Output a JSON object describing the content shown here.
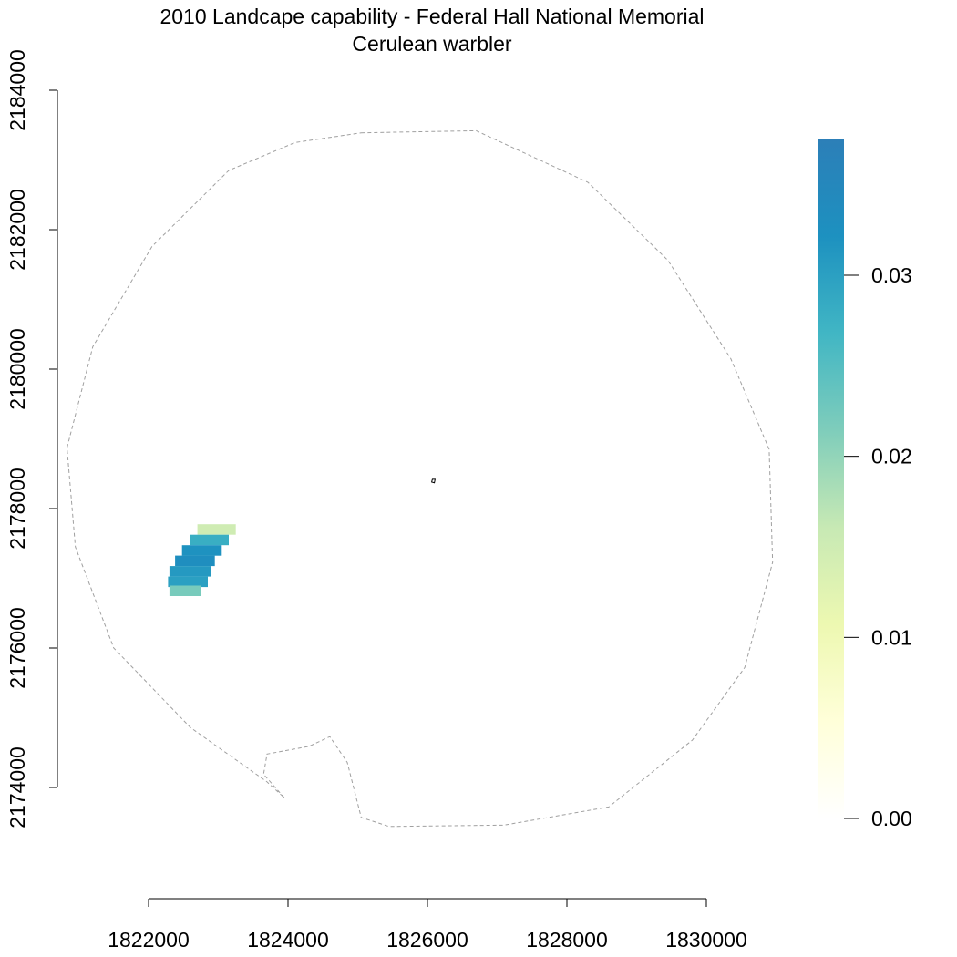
{
  "title_line1": "2010 Landcape capability - Federal Hall National Memorial",
  "title_line2": "Cerulean warbler",
  "x_axis": {
    "ticks": [
      {
        "value": 1822000,
        "label": "1822000"
      },
      {
        "value": 1824000,
        "label": "1824000"
      },
      {
        "value": 1826000,
        "label": "1826000"
      },
      {
        "value": 1828000,
        "label": "1828000"
      },
      {
        "value": 1830000,
        "label": "1830000"
      }
    ]
  },
  "y_axis": {
    "ticks": [
      {
        "value": 2174000,
        "label": "2174000"
      },
      {
        "value": 2176000,
        "label": "2176000"
      },
      {
        "value": 2178000,
        "label": "2178000"
      },
      {
        "value": 2180000,
        "label": "2180000"
      },
      {
        "value": 2182000,
        "label": "2182000"
      },
      {
        "value": 2184000,
        "label": "2184000"
      }
    ]
  },
  "legend": {
    "range": [
      0,
      0.0375
    ],
    "ticks": [
      {
        "value": 0.0,
        "label": "0.00"
      },
      {
        "value": 0.01,
        "label": "0.01"
      },
      {
        "value": 0.02,
        "label": "0.02"
      },
      {
        "value": 0.03,
        "label": "0.03"
      }
    ],
    "colors": [
      "#ffffff",
      "#ffffd9",
      "#edf8b1",
      "#c7e9b4",
      "#7fcdbb",
      "#41b6c4",
      "#1d91c0",
      "#2c7fb8"
    ]
  },
  "colors": {
    "boundary": "#a0a0a0",
    "axis": "#000000"
  },
  "chart_data": {
    "type": "heatmap",
    "title": "2010 Landcape capability - Federal Hall National Memorial",
    "subtitle": "Cerulean warbler",
    "xlabel": "",
    "ylabel": "",
    "xlim": [
      1822000,
      1830000
    ],
    "ylim": [
      2174000,
      2184000
    ],
    "value_range": [
      0.0,
      0.0375
    ],
    "legend_position": "right",
    "buffer_boundary": [
      [
        1825050,
        2183390
      ],
      [
        1826700,
        2183420
      ],
      [
        1828300,
        2182680
      ],
      [
        1829450,
        2181560
      ],
      [
        1830350,
        2180150
      ],
      [
        1830900,
        2178850
      ],
      [
        1830950,
        2177230
      ],
      [
        1830550,
        2175720
      ],
      [
        1829800,
        2174680
      ],
      [
        1828600,
        2173720
      ],
      [
        1827100,
        2173460
      ],
      [
        1825450,
        2173440
      ],
      [
        1825050,
        2173570
      ],
      [
        1824850,
        2174360
      ],
      [
        1824600,
        2174730
      ],
      [
        1824300,
        2174590
      ],
      [
        1823700,
        2174480
      ],
      [
        1823650,
        2174190
      ],
      [
        1823950,
        2173850
      ],
      [
        1823700,
        2174080
      ],
      [
        1822600,
        2174860
      ],
      [
        1821500,
        2176000
      ],
      [
        1820950,
        2177450
      ],
      [
        1820830,
        2178870
      ],
      [
        1821200,
        2180320
      ],
      [
        1822050,
        2181760
      ],
      [
        1823150,
        2182850
      ],
      [
        1824100,
        2183250
      ]
    ],
    "park_boundary": [
      [
        1826070,
        2178420
      ],
      [
        1826110,
        2178420
      ],
      [
        1826100,
        2178370
      ],
      [
        1826060,
        2178380
      ]
    ],
    "habitat_patch_rows": [
      {
        "y": 2177700,
        "x_start": 1822700,
        "x_end": 1823250,
        "value": 0.015
      },
      {
        "y": 2177550,
        "x_start": 1822600,
        "x_end": 1823150,
        "value": 0.028
      },
      {
        "y": 2177400,
        "x_start": 1822480,
        "x_end": 1823050,
        "value": 0.032
      },
      {
        "y": 2177250,
        "x_start": 1822380,
        "x_end": 1822950,
        "value": 0.033
      },
      {
        "y": 2177100,
        "x_start": 1822300,
        "x_end": 1822900,
        "value": 0.031
      },
      {
        "y": 2176950,
        "x_start": 1822280,
        "x_end": 1822850,
        "value": 0.03
      },
      {
        "y": 2176820,
        "x_start": 1822300,
        "x_end": 1822750,
        "value": 0.022
      }
    ]
  }
}
